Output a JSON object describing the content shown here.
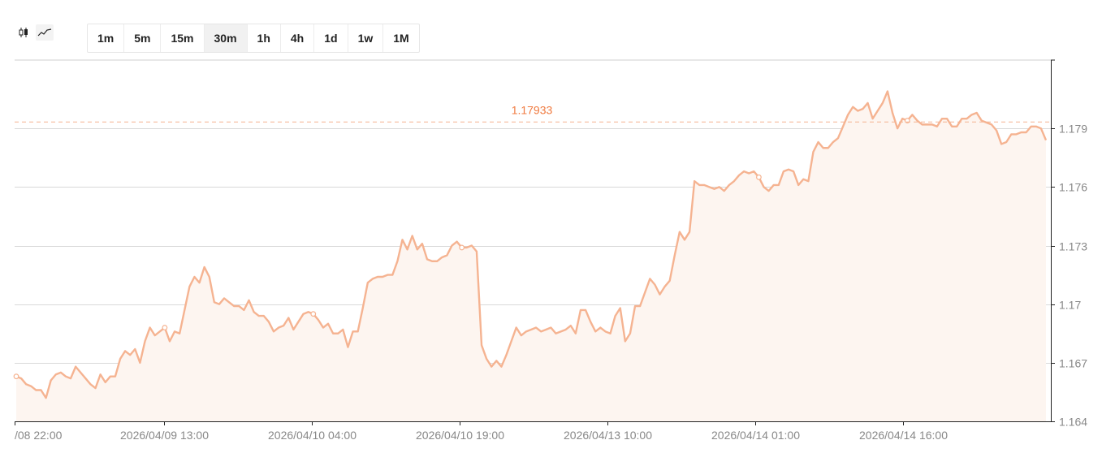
{
  "chart_type_toggle": {
    "options": [
      {
        "name": "candlestick-icon",
        "active": false
      },
      {
        "name": "line-chart-icon",
        "active": true
      }
    ]
  },
  "timeframes": {
    "items": [
      "1m",
      "5m",
      "15m",
      "30m",
      "1h",
      "4h",
      "1d",
      "1w",
      "1M"
    ],
    "selected": "30m"
  },
  "chart_data": {
    "type": "area",
    "title": "",
    "xlabel": "",
    "ylabel": "",
    "x_tick_labels": [
      "/08 22:00",
      "2026/04/09 13:00",
      "2026/04/10 04:00",
      "2026/04/10 19:00",
      "2026/04/13 10:00",
      "2026/04/14 01:00",
      "2026/04/14 16:00"
    ],
    "y_ticks": [
      1.164,
      1.167,
      1.17,
      1.173,
      1.176,
      1.179
    ],
    "y_tick_labels": [
      "1.164",
      "1.167",
      "1.17",
      "1.173",
      "1.176",
      "1.179"
    ],
    "ylim": [
      1.164,
      1.1825
    ],
    "reference_line": {
      "label": "1.17933",
      "value": 1.17933
    },
    "line_color": "#f5b391",
    "fill_color": "#fdf5f0",
    "grid": true,
    "values": [
      1.1663,
      1.1662,
      1.1659,
      1.1658,
      1.1656,
      1.1656,
      1.1652,
      1.1661,
      1.1664,
      1.1665,
      1.1663,
      1.1662,
      1.1668,
      1.1665,
      1.1662,
      1.1659,
      1.1657,
      1.1664,
      1.166,
      1.1663,
      1.1663,
      1.1672,
      1.1676,
      1.1674,
      1.1677,
      1.167,
      1.1681,
      1.1688,
      1.1684,
      1.1686,
      1.1688,
      1.1681,
      1.1686,
      1.1685,
      1.1697,
      1.1709,
      1.1714,
      1.1711,
      1.1719,
      1.1714,
      1.1701,
      1.17,
      1.1703,
      1.1701,
      1.1699,
      1.1699,
      1.1697,
      1.1702,
      1.1696,
      1.1694,
      1.1694,
      1.1691,
      1.1686,
      1.1688,
      1.1689,
      1.1693,
      1.1687,
      1.1691,
      1.1695,
      1.1696,
      1.1695,
      1.1692,
      1.1688,
      1.169,
      1.1685,
      1.1685,
      1.1687,
      1.1678,
      1.1686,
      1.1686,
      1.1698,
      1.1711,
      1.1713,
      1.1714,
      1.1714,
      1.1715,
      1.1715,
      1.1722,
      1.1733,
      1.1728,
      1.1735,
      1.1728,
      1.1731,
      1.1723,
      1.1722,
      1.1722,
      1.1724,
      1.1725,
      1.173,
      1.1732,
      1.1729,
      1.1729,
      1.173,
      1.1727,
      1.1679,
      1.1672,
      1.1668,
      1.1671,
      1.1668,
      1.1674,
      1.1681,
      1.1688,
      1.1684,
      1.1686,
      1.1687,
      1.1688,
      1.1686,
      1.1687,
      1.1688,
      1.1685,
      1.1686,
      1.1687,
      1.1689,
      1.1685,
      1.1697,
      1.1697,
      1.1691,
      1.1686,
      1.1688,
      1.1686,
      1.1685,
      1.1694,
      1.1698,
      1.1681,
      1.1685,
      1.1699,
      1.1699,
      1.1706,
      1.1713,
      1.171,
      1.1705,
      1.1709,
      1.1712,
      1.1725,
      1.1737,
      1.1733,
      1.1737,
      1.1763,
      1.1761,
      1.1761,
      1.176,
      1.1759,
      1.176,
      1.1758,
      1.1761,
      1.1763,
      1.1766,
      1.1768,
      1.1767,
      1.1768,
      1.1765,
      1.176,
      1.1758,
      1.1761,
      1.1761,
      1.1768,
      1.1769,
      1.1768,
      1.1761,
      1.1764,
      1.1763,
      1.1778,
      1.1783,
      1.178,
      1.178,
      1.1783,
      1.1785,
      1.1791,
      1.1797,
      1.1801,
      1.1799,
      1.18,
      1.1803,
      1.1795,
      1.1799,
      1.1803,
      1.1809,
      1.1798,
      1.179,
      1.1795,
      1.1794,
      1.1797,
      1.1794,
      1.1792,
      1.1792,
      1.1792,
      1.1791,
      1.1795,
      1.1795,
      1.1791,
      1.1791,
      1.1795,
      1.1795,
      1.1797,
      1.1798,
      1.1794,
      1.1793,
      1.1792,
      1.1789,
      1.1782,
      1.1783,
      1.1787,
      1.1787,
      1.1788,
      1.1788,
      1.1791,
      1.1791,
      1.179,
      1.1784
    ],
    "marker_indices": [
      0,
      30,
      60,
      90,
      150,
      180
    ]
  }
}
